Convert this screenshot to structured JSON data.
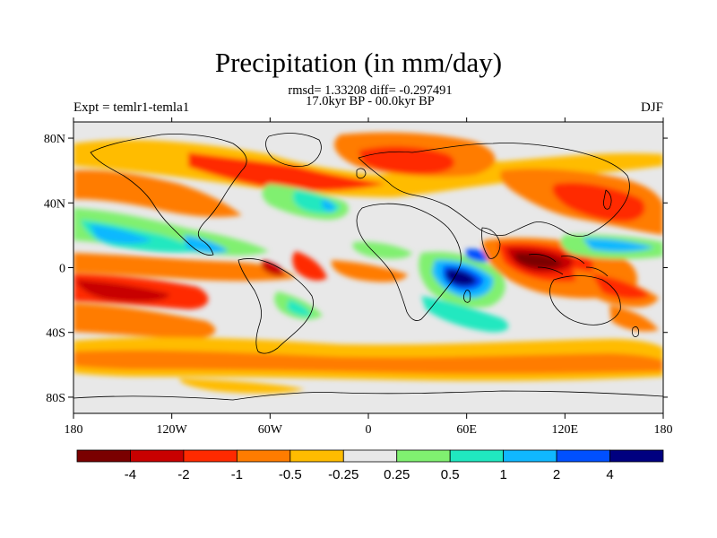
{
  "header": {
    "title": "Precipitation (in mm/day)",
    "stats": "rmsd= 1.33208 diff= -0.297491",
    "period": "17.0kyr BP - 00.0kyr BP",
    "expt": "Expt = temlr1-temla1",
    "season": "DJF"
  },
  "map": {
    "projection": "equirectangular",
    "lon_range": [
      -180,
      180
    ],
    "lat_range": [
      -90,
      90
    ],
    "x_ticks": [
      {
        "lon": -180,
        "label": "180"
      },
      {
        "lon": -120,
        "label": "120W"
      },
      {
        "lon": -60,
        "label": "60W"
      },
      {
        "lon": 0,
        "label": "0"
      },
      {
        "lon": 60,
        "label": "60E"
      },
      {
        "lon": 120,
        "label": "120E"
      },
      {
        "lon": 180,
        "label": "180"
      }
    ],
    "y_ticks": [
      {
        "lat": 80,
        "label": "80N"
      },
      {
        "lat": 40,
        "label": "40N"
      },
      {
        "lat": 0,
        "label": "0"
      },
      {
        "lat": -40,
        "label": "40S"
      },
      {
        "lat": -80,
        "label": "80S"
      }
    ],
    "background_color": "#e8e8e8",
    "coastline_color": "#000000"
  },
  "colorbar": {
    "levels": [
      "-4",
      "-2",
      "-1",
      "-0.5",
      "-0.25",
      "0.25",
      "0.5",
      "1",
      "2",
      "4"
    ],
    "colors": [
      "#7a0000",
      "#c80000",
      "#ff2a00",
      "#ff7c00",
      "#ffbc00",
      "#e8e8e8",
      "#80f070",
      "#20e8c0",
      "#10b8ff",
      "#0050ff",
      "#000080"
    ]
  }
}
